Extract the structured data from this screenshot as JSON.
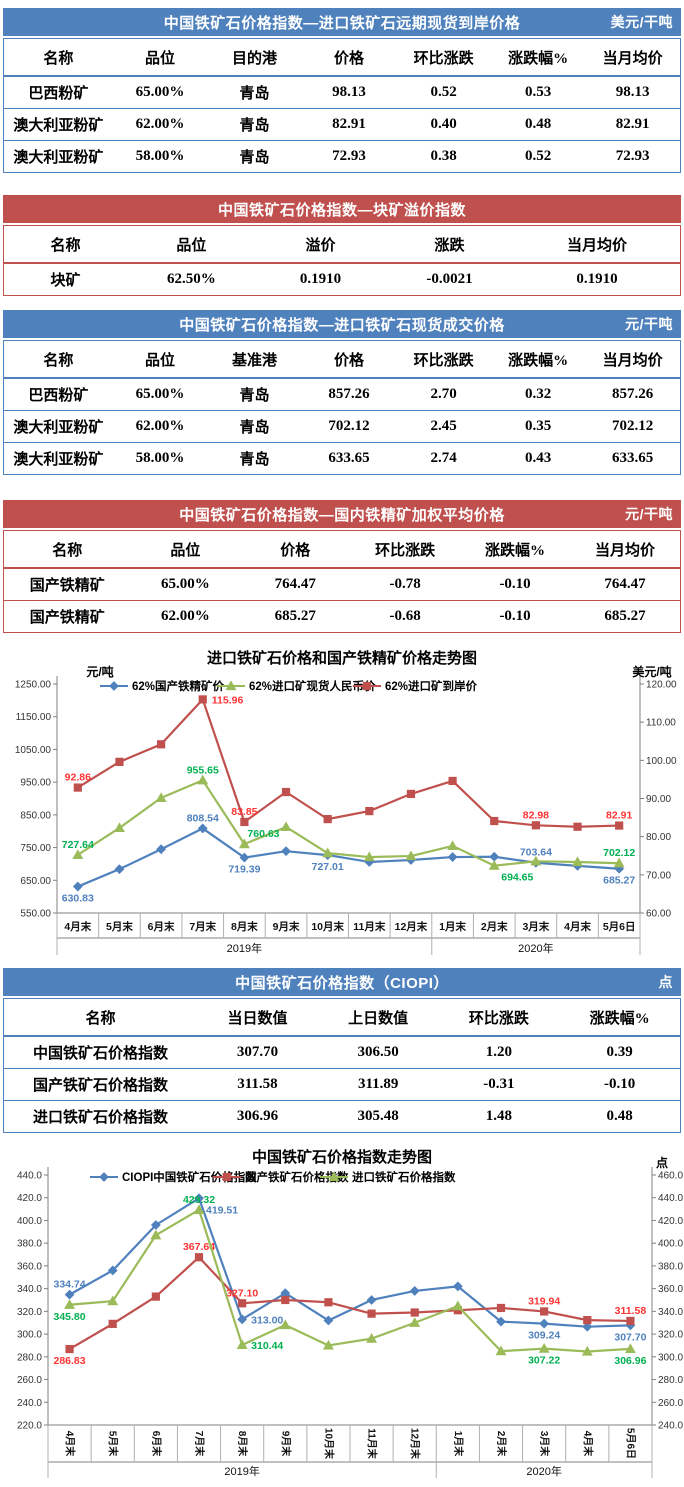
{
  "tables": [
    {
      "title": "中国铁矿石价格指数—进口铁矿石远期现货到岸价格",
      "unit": "美元/干吨",
      "accent": "#4F81BD",
      "headers": [
        "名称",
        "品位",
        "目的港",
        "价格",
        "环比涨跌",
        "涨跌幅%",
        "当月均价"
      ],
      "rows": [
        [
          "巴西粉矿",
          "65.00%",
          "青岛",
          "98.13",
          "0.52",
          "0.53",
          "98.13"
        ],
        [
          "澳大利亚粉矿",
          "62.00%",
          "青岛",
          "82.91",
          "0.40",
          "0.48",
          "82.91"
        ],
        [
          "澳大利亚粉矿",
          "58.00%",
          "青岛",
          "72.93",
          "0.38",
          "0.52",
          "72.93"
        ]
      ]
    },
    {
      "title": "中国铁矿石价格指数—块矿溢价指数",
      "unit": "",
      "accent": "#C0504D",
      "headers": [
        "名称",
        "品位",
        "溢价",
        "涨跌",
        "当月均价"
      ],
      "rows": [
        [
          "块矿",
          "62.50%",
          "0.1910",
          "-0.0021",
          "0.1910"
        ]
      ]
    },
    {
      "title": "中国铁矿石价格指数—进口铁矿石现货成交价格",
      "unit": "元/干吨",
      "accent": "#4F81BD",
      "headers": [
        "名称",
        "品位",
        "基准港",
        "价格",
        "环比涨跌",
        "涨跌幅%",
        "当月均价"
      ],
      "rows": [
        [
          "巴西粉矿",
          "65.00%",
          "青岛",
          "857.26",
          "2.70",
          "0.32",
          "857.26"
        ],
        [
          "澳大利亚粉矿",
          "62.00%",
          "青岛",
          "702.12",
          "2.45",
          "0.35",
          "702.12"
        ],
        [
          "澳大利亚粉矿",
          "58.00%",
          "青岛",
          "633.65",
          "2.74",
          "0.43",
          "633.65"
        ]
      ]
    },
    {
      "title": "中国铁矿石价格指数—国内铁精矿加权平均价格",
      "unit": "元/干吨",
      "accent": "#C0504D",
      "headers": [
        "名称",
        "品位",
        "价格",
        "环比涨跌",
        "涨跌幅%",
        "当月均价"
      ],
      "rows": [
        [
          "国产铁精矿",
          "65.00%",
          "764.47",
          "-0.78",
          "-0.10",
          "764.47"
        ],
        [
          "国产铁精矿",
          "62.00%",
          "685.27",
          "-0.68",
          "-0.10",
          "685.27"
        ]
      ]
    },
    {
      "title": "中国铁矿石价格指数（CIOPI）",
      "unit": "点",
      "accent": "#4F81BD",
      "headers": [
        "名称",
        "当日数值",
        "上日数值",
        "环比涨跌",
        "涨跌幅%"
      ],
      "rows": [
        [
          "中国铁矿石价格指数",
          "307.70",
          "306.50",
          "1.20",
          "0.39"
        ],
        [
          "国产铁矿石价格指数",
          "311.58",
          "311.89",
          "-0.31",
          "-0.10"
        ],
        [
          "进口铁矿石价格指数",
          "306.96",
          "305.48",
          "1.48",
          "0.48"
        ]
      ]
    }
  ],
  "chart_data": [
    {
      "type": "line",
      "title": "进口铁矿石价格和国产铁精矿价格走势图",
      "legend_position": "top",
      "grid": false,
      "categories": [
        "4月末",
        "5月末",
        "6月末",
        "7月末",
        "8月末",
        "9月末",
        "10月末",
        "11月末",
        "12月末",
        "1月末",
        "2月末",
        "3月末",
        "4月末",
        "5月6日"
      ],
      "year_groups": [
        {
          "label": "2019年",
          "count": 9
        },
        {
          "label": "2020年",
          "count": 5
        }
      ],
      "left_axis": {
        "label": "元/吨",
        "min": 550,
        "max": 1250,
        "step": 100,
        "decimals": 2
      },
      "right_axis": {
        "label": "美元/吨",
        "min": 60,
        "max": 120,
        "step": 10,
        "decimals": 2
      },
      "series": [
        {
          "name": "62%国产铁精矿价",
          "color": "#4F81BD",
          "label_color": "#4F81BD",
          "axis": "left",
          "marker": "diamond",
          "values": [
            630.83,
            684,
            745,
            808.54,
            719.39,
            739,
            727.01,
            706,
            712,
            721,
            722,
            703.64,
            694,
            685.27
          ],
          "labels": {
            "0": {
              "t": "630.83",
              "p": "b"
            },
            "3": {
              "t": "808.54",
              "p": "a"
            },
            "4": {
              "t": "719.39",
              "p": "b"
            },
            "6": {
              "t": "727.01",
              "p": "b"
            },
            "11": {
              "t": "703.64",
              "p": "a"
            },
            "13": {
              "t": "685.27",
              "p": "b"
            }
          }
        },
        {
          "name": "62%进口矿现货人民币价",
          "color": "#9BBB59",
          "label_color": "#00B050",
          "axis": "left",
          "marker": "triangle",
          "values": [
            727.64,
            810,
            902,
            955.65,
            760.63,
            813,
            733,
            721,
            724,
            755,
            694.65,
            708,
            706,
            702.12
          ],
          "labels": {
            "0": {
              "t": "727.64",
              "p": "a"
            },
            "3": {
              "t": "955.65",
              "p": "a"
            },
            "4": {
              "t": "760.63",
              "p": "ar"
            },
            "10": {
              "t": "694.65",
              "p": "br"
            },
            "13": {
              "t": "702.12",
              "p": "a"
            }
          }
        },
        {
          "name": "62%进口矿到岸价",
          "color": "#C0504D",
          "label_color": "#FF3333",
          "axis": "right",
          "marker": "square",
          "values": [
            92.86,
            99.6,
            104.2,
            115.96,
            83.85,
            91.7,
            84.6,
            86.7,
            91.2,
            94.6,
            84.1,
            82.98,
            82.6,
            82.91
          ],
          "labels": {
            "0": {
              "t": "92.86",
              "p": "a"
            },
            "3": {
              "t": "115.96",
              "p": "r"
            },
            "4": {
              "t": "83.85",
              "p": "a"
            },
            "11": {
              "t": "82.98",
              "p": "a"
            },
            "13": {
              "t": "82.91",
              "p": "a"
            }
          }
        }
      ]
    },
    {
      "type": "line",
      "title": "中国铁矿石价格指数走势图",
      "legend_position": "top",
      "grid": false,
      "categories": [
        "4月末",
        "5月末",
        "6月末",
        "7月末",
        "8月末",
        "9月末",
        "10月末",
        "11月末",
        "12月末",
        "1月末",
        "2月末",
        "3月末",
        "4月末",
        "5月6日"
      ],
      "year_groups": [
        {
          "label": "2019年",
          "count": 9
        },
        {
          "label": "2020年",
          "count": 5
        }
      ],
      "left_axis": {
        "label": "",
        "min": 220,
        "max": 440,
        "step": 20,
        "decimals": 1
      },
      "right_axis": {
        "label": "点",
        "min": 240,
        "max": 460,
        "step": 20,
        "decimals": 1
      },
      "series": [
        {
          "name": "CIOPI中国铁矿石价格指数",
          "color": "#4F81BD",
          "label_color": "#4F81BD",
          "axis": "left",
          "marker": "diamond",
          "values": [
            334.74,
            356,
            396,
            419.51,
            313.0,
            336,
            312,
            330,
            338,
            342,
            311,
            309.24,
            306.5,
            307.7
          ],
          "labels": {
            "0": {
              "t": "334.74",
              "p": "a"
            },
            "3": {
              "t": "419.51",
              "p": "br"
            },
            "4": {
              "t": "313.00",
              "p": "r"
            },
            "11": {
              "t": "309.24",
              "p": "b"
            },
            "13": {
              "t": "307.70",
              "p": "b"
            }
          }
        },
        {
          "name": "国产铁矿石价格指数",
          "color": "#C0504D",
          "label_color": "#FF3333",
          "axis": "left",
          "marker": "square",
          "values": [
            286.83,
            309,
            333,
            367.64,
            327.1,
            330,
            328,
            318,
            319,
            321,
            323,
            319.94,
            312.3,
            311.58
          ],
          "labels": {
            "0": {
              "t": "286.83",
              "p": "b"
            },
            "3": {
              "t": "367.64",
              "p": "a"
            },
            "4": {
              "t": "327.10",
              "p": "a"
            },
            "11": {
              "t": "319.94",
              "p": "a"
            },
            "13": {
              "t": "311.58",
              "p": "a"
            }
          }
        },
        {
          "name": "进口铁矿石价格指数",
          "color": "#9BBB59",
          "label_color": "#00B050",
          "axis": "right",
          "marker": "triangle",
          "values": [
            345.8,
            349,
            407,
            429.32,
            310.44,
            328,
            310,
            316,
            330,
            344.6,
            305,
            307.22,
            304.7,
            306.96
          ],
          "labels": {
            "0": {
              "t": "345.80",
              "p": "b"
            },
            "3": {
              "t": "429.32",
              "p": "a"
            },
            "4": {
              "t": "310.44",
              "p": "r"
            },
            "11": {
              "t": "307.22",
              "p": "b"
            },
            "13": {
              "t": "306.96",
              "p": "b"
            }
          }
        }
      ]
    }
  ]
}
